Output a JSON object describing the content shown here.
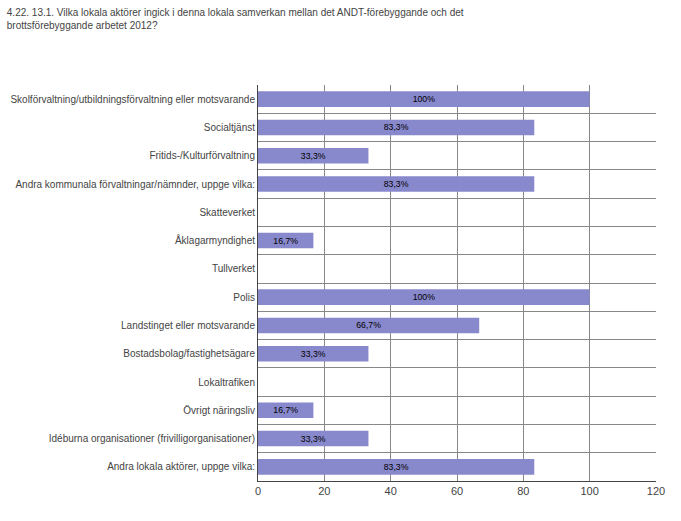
{
  "chart_data": {
    "type": "bar",
    "orientation": "horizontal",
    "title": "4.22. 13.1. Vilka lokala aktörer ingick i denna lokala samverkan mellan det ANDT-förebyggande och det\nbrottsförebyggande arbetet 2012?",
    "categories": [
      "Andra lokala aktörer, uppge vilka:",
      "Idéburna organisationer (frivilligorganisationer)",
      "Övrigt näringsliv",
      "Lokaltrafiken",
      "Bostadsbolag/fastighetsägare",
      "Landstinget eller motsvarande",
      "Polis",
      "Tullverket",
      "Åklagarmyndighet",
      "Skatteverket",
      "Andra kommunala förvaltningar/nämnder, uppge vilka:",
      "Fritids-/Kulturförvaltning",
      "Socialtjänst",
      "Skolförvaltning/utbildningsförvaltning eller motsvarande"
    ],
    "values": [
      83.3,
      33.3,
      16.7,
      0,
      33.3,
      66.7,
      100,
      0,
      16.7,
      0,
      83.3,
      33.3,
      83.3,
      100
    ],
    "value_labels": [
      "83,3%",
      "33,3%",
      "16,7%",
      null,
      "33,3%",
      "66,7%",
      "100%",
      null,
      "16,7%",
      null,
      "83,3%",
      "33,3%",
      "83,3%",
      "100%"
    ],
    "data_labels": true,
    "color": "#8888cc",
    "xlim": [
      0,
      120
    ],
    "xticks": [
      0,
      20,
      40,
      60,
      80,
      100,
      120
    ],
    "grid": true
  }
}
